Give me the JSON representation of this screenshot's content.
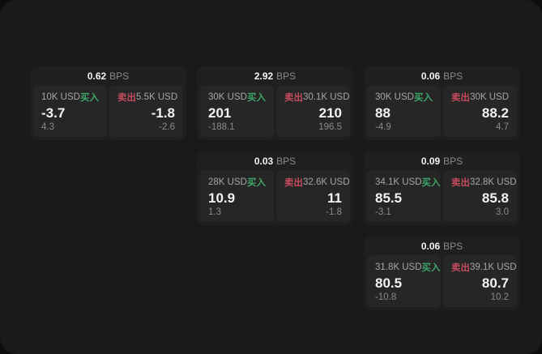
{
  "labels": {
    "bps_unit": "BPS",
    "buy": "买入",
    "sell": "卖出"
  },
  "colors": {
    "buy": "#3ea569",
    "sell": "#c44b5c",
    "page_bg": "#1a1a1a",
    "card_bg": "#1f1f1f",
    "panel_bg": "#262626",
    "outer_bg": "#0d0d0d"
  },
  "cards": [
    {
      "bps": "0.62",
      "buy": {
        "notional": "10K USD",
        "price": "-3.7",
        "delta": "4.3"
      },
      "sell": {
        "notional": "5.5K USD",
        "price": "-1.8",
        "delta": "-2.6"
      }
    },
    {
      "bps": "2.92",
      "buy": {
        "notional": "30K USD",
        "price": "201",
        "delta": "-188.1"
      },
      "sell": {
        "notional": "30.1K USD",
        "price": "210",
        "delta": "196.5"
      }
    },
    {
      "bps": "0.06",
      "buy": {
        "notional": "30K USD",
        "price": "88",
        "delta": "-4.9"
      },
      "sell": {
        "notional": "30K USD",
        "price": "88.2",
        "delta": "4.7"
      }
    },
    {
      "bps": "0.03",
      "buy": {
        "notional": "28K USD",
        "price": "10.9",
        "delta": "1.3"
      },
      "sell": {
        "notional": "32.6K USD",
        "price": "11",
        "delta": "-1.8"
      }
    },
    {
      "bps": "0.09",
      "buy": {
        "notional": "34.1K USD",
        "price": "85.5",
        "delta": "-3.1"
      },
      "sell": {
        "notional": "32.8K USD",
        "price": "85.8",
        "delta": "3.0"
      }
    },
    {
      "bps": "0.06",
      "buy": {
        "notional": "31.8K USD",
        "price": "80.5",
        "delta": "-10.8"
      },
      "sell": {
        "notional": "39.1K USD",
        "price": "80.7",
        "delta": "10.2"
      }
    }
  ]
}
